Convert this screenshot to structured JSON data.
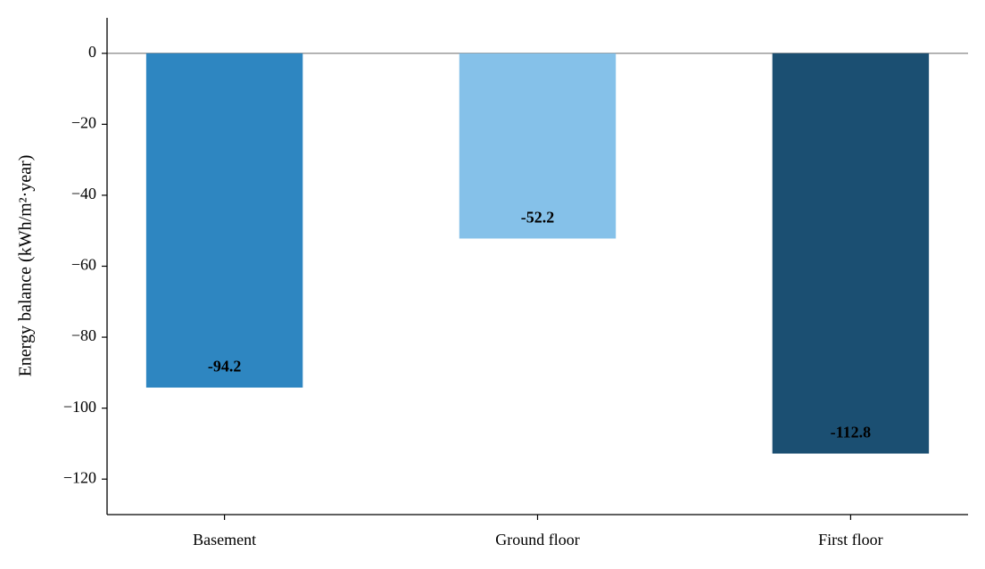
{
  "chart_data": {
    "type": "bar",
    "ylabel": "Energy balance (kWh/m²·year)",
    "categories": [
      "Basement",
      "Ground floor",
      "First floor"
    ],
    "values": [
      -94.2,
      -52.2,
      -112.8
    ],
    "colors": [
      "#2e86c1",
      "#85c1e9",
      "#1b4f72"
    ],
    "ylim": [
      -130,
      10
    ],
    "yticks": [
      0,
      {
        "value": -20,
        "label": "−20"
      },
      {
        "value": -40,
        "label": "−40"
      },
      {
        "value": -60,
        "label": "−60"
      },
      {
        "value": -80,
        "label": "−80"
      },
      {
        "value": -100,
        "label": "−100"
      },
      {
        "value": -120,
        "label": "−120"
      }
    ],
    "grid": false
  }
}
